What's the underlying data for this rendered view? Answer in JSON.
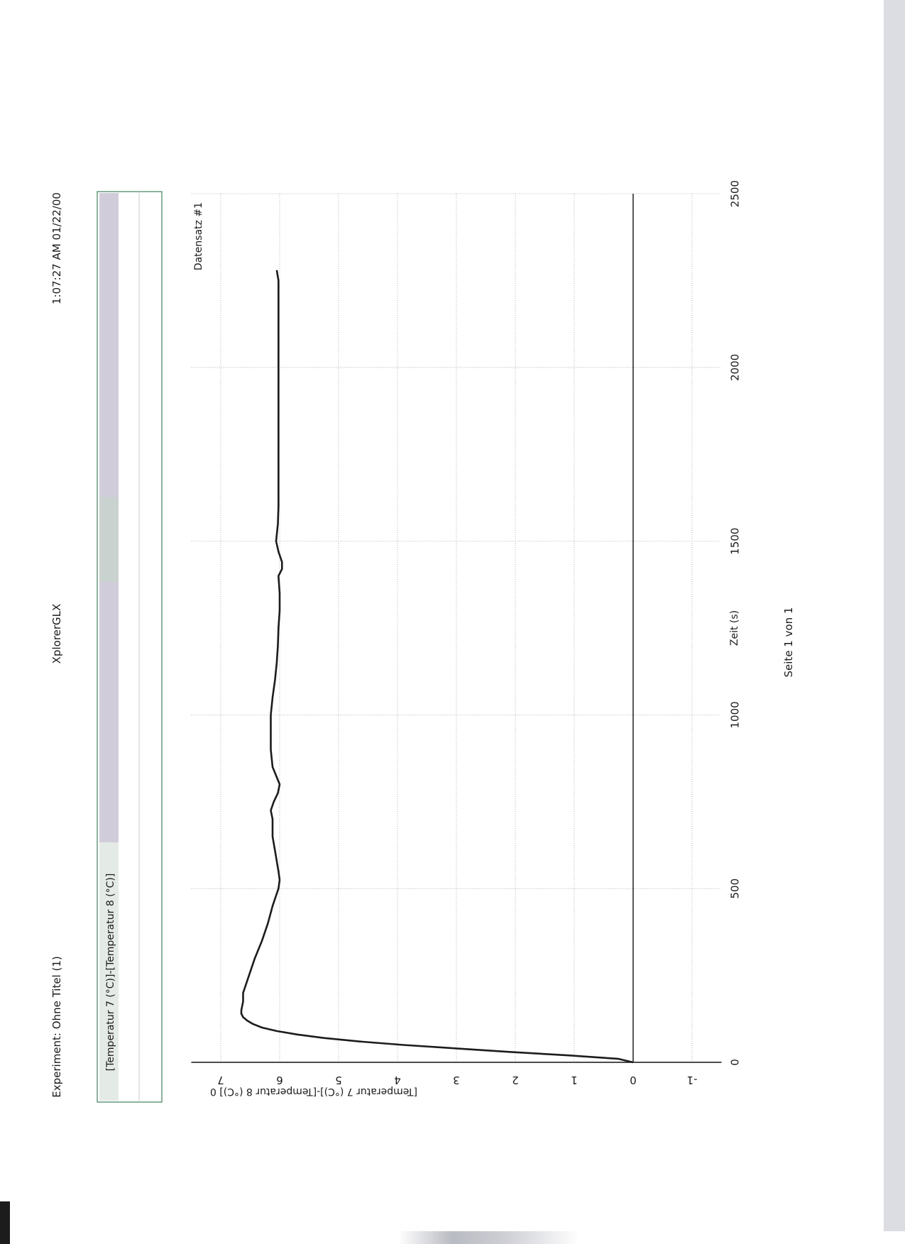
{
  "header": {
    "experiment": "Experiment: Ohne Titel (1)",
    "app": "XplorerGLX",
    "timestamp": "1:07:27 AM 01/22/00"
  },
  "legend_box": {
    "label": "[Temperatur 7 (°C)]-[Temperatur 8 (°C)]"
  },
  "footer": {
    "page": "Seite 1 von 1"
  },
  "dataset_label": "Datensatz #1",
  "chart_data": {
    "type": "line",
    "title": "",
    "xlabel": "Zeit (s)",
    "ylabel": "[Temperatur 7 (°C)]-[Temperatur 8 (°C)] 0",
    "xlim": [
      0,
      2500
    ],
    "ylim": [
      -1.5,
      7.5
    ],
    "x_ticks": [
      0,
      500,
      1000,
      1500,
      2000,
      2500
    ],
    "y_ticks": [
      -1,
      0,
      1,
      2,
      3,
      4,
      5,
      6,
      7
    ],
    "grid": true,
    "series": [
      {
        "name": "Datensatz #1",
        "x": [
          0,
          10,
          20,
          30,
          40,
          50,
          60,
          70,
          80,
          90,
          100,
          110,
          120,
          130,
          140,
          150,
          175,
          200,
          250,
          300,
          350,
          400,
          450,
          500,
          525,
          550,
          600,
          650,
          700,
          725,
          750,
          775,
          800,
          850,
          900,
          950,
          1000,
          1050,
          1100,
          1150,
          1200,
          1250,
          1300,
          1350,
          1400,
          1420,
          1440,
          1470,
          1500,
          1550,
          1600,
          1700,
          1800,
          1900,
          2000,
          2100,
          2200,
          2250,
          2280
        ],
        "y": [
          0.0,
          0.25,
          1.1,
          2.1,
          3.0,
          3.9,
          4.65,
          5.25,
          5.7,
          6.05,
          6.3,
          6.45,
          6.55,
          6.62,
          6.65,
          6.65,
          6.62,
          6.62,
          6.52,
          6.42,
          6.3,
          6.2,
          6.12,
          6.02,
          6.0,
          6.02,
          6.07,
          6.12,
          6.12,
          6.15,
          6.1,
          6.03,
          6.0,
          6.12,
          6.15,
          6.15,
          6.15,
          6.12,
          6.08,
          6.05,
          6.03,
          6.02,
          6.0,
          6.0,
          6.02,
          5.96,
          5.96,
          6.02,
          6.06,
          6.03,
          6.02,
          6.02,
          6.02,
          6.02,
          6.02,
          6.02,
          6.02,
          6.02,
          6.05
        ]
      }
    ],
    "legend": "top-right",
    "colors": {
      "line": "#1c1c1c",
      "grid": "#9aa0a8",
      "axis": "#111111"
    }
  }
}
